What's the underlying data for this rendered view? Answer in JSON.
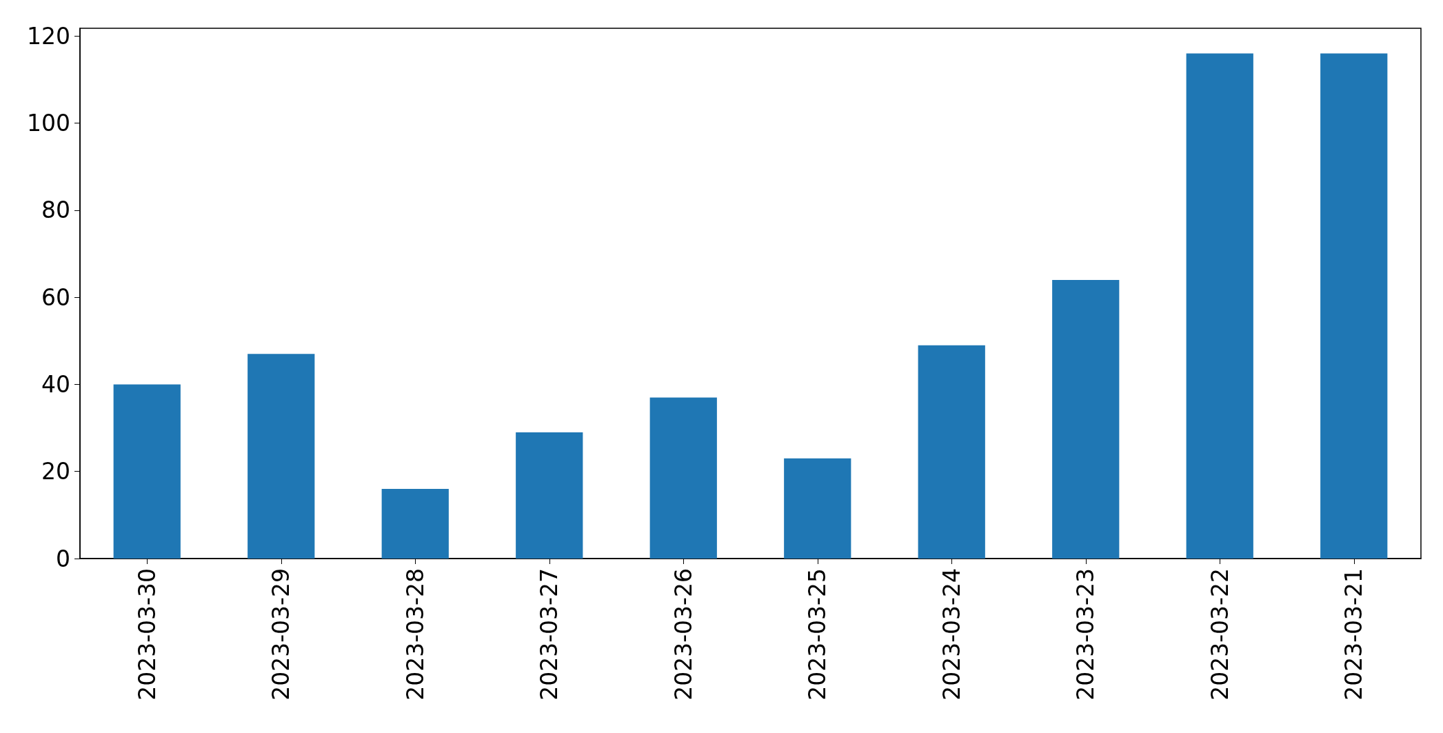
{
  "chart_data": {
    "type": "bar",
    "categories": [
      "2023-03-30",
      "2023-03-29",
      "2023-03-28",
      "2023-03-27",
      "2023-03-26",
      "2023-03-25",
      "2023-03-24",
      "2023-03-23",
      "2023-03-22",
      "2023-03-21"
    ],
    "values": [
      40,
      47,
      16,
      29,
      37,
      23,
      49,
      64,
      116,
      116
    ],
    "color": "#1f77b4",
    "ylim": [
      0,
      121.8
    ],
    "yticks": [
      0,
      20,
      40,
      60,
      80,
      100,
      120
    ],
    "grid": false
  }
}
